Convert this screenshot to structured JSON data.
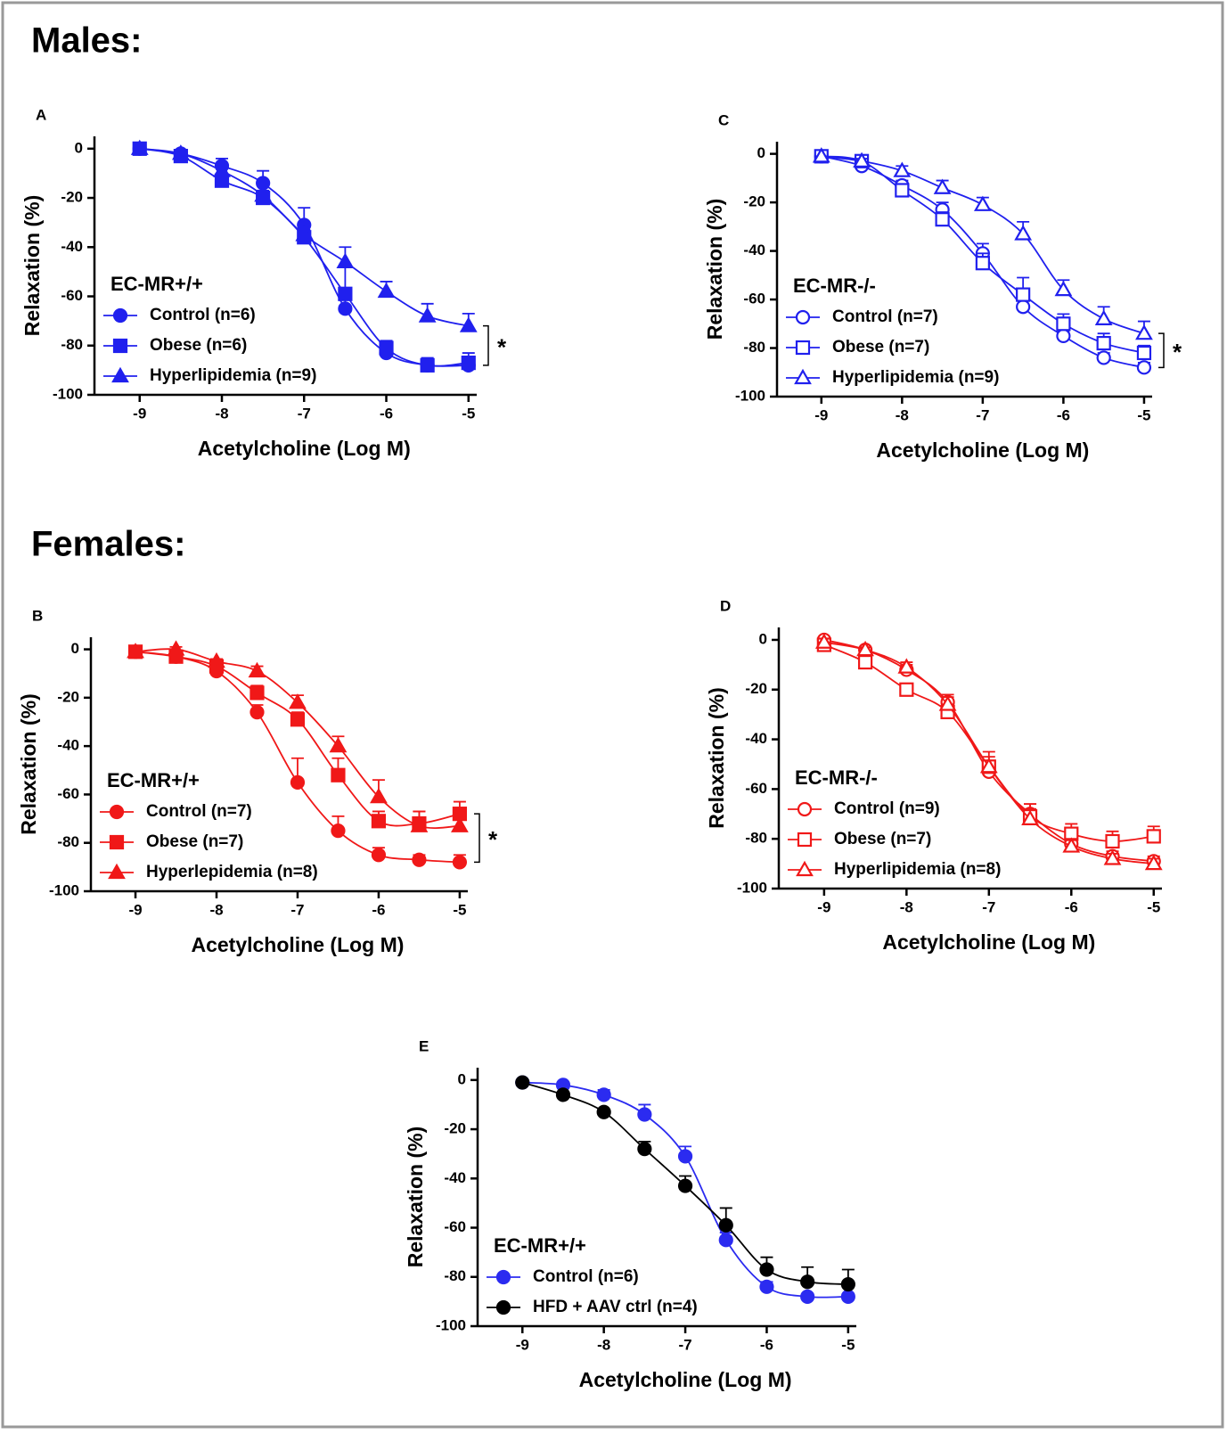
{
  "headings": [
    "Males:",
    "Females:"
  ],
  "chart_data": [
    {
      "type": "line",
      "panel": "A",
      "legend_title": "EC-MR+/+",
      "xlabel": "Acetylcholine (Log M)",
      "ylabel": "Relaxation (%)",
      "significance": "*",
      "x": [
        -9,
        -8.5,
        -8,
        -7.5,
        -7,
        -6.5,
        -6,
        -5.5,
        -5
      ],
      "xlim": [
        -9.55,
        -4.9
      ],
      "xticks": [
        -9,
        -8,
        -7,
        -6,
        -5
      ],
      "ylim": [
        -100,
        5
      ],
      "yticks": [
        0,
        -20,
        -40,
        -60,
        -80,
        -100
      ],
      "series": [
        {
          "name": "Control (n=6)",
          "color": "#2020ee",
          "marker": "circle",
          "filled": true,
          "values": [
            0,
            -2,
            -7,
            -14,
            -31,
            -65,
            -83,
            -88,
            -88
          ],
          "errors": [
            0,
            1,
            3,
            5,
            7,
            4,
            3,
            2,
            3
          ]
        },
        {
          "name": "Obese (n=6)",
          "color": "#2020ee",
          "marker": "square",
          "filled": true,
          "values": [
            0,
            -3,
            -13,
            -20,
            -36,
            -59,
            -81,
            -88,
            -87
          ],
          "errors": [
            0,
            1,
            2,
            2,
            3,
            12,
            3,
            3,
            4
          ]
        },
        {
          "name": "Hyperlipidemia (n=9)",
          "color": "#2020ee",
          "marker": "triangle",
          "filled": true,
          "values": [
            0,
            -2,
            -9,
            -19,
            -35,
            -46,
            -58,
            -68,
            -72
          ],
          "errors": [
            0,
            1,
            2,
            2,
            4,
            6,
            4,
            5,
            5
          ]
        }
      ]
    },
    {
      "type": "line",
      "panel": "C",
      "legend_title": "EC-MR-/-",
      "xlabel": "Acetylcholine (Log M)",
      "ylabel": "Relaxation (%)",
      "significance": "*",
      "x": [
        -9,
        -8.5,
        -8,
        -7.5,
        -7,
        -6.5,
        -6,
        -5.5,
        -5
      ],
      "xlim": [
        -9.55,
        -4.9
      ],
      "xticks": [
        -9,
        -8,
        -7,
        -6,
        -5
      ],
      "ylim": [
        -100,
        5
      ],
      "yticks": [
        0,
        -20,
        -40,
        -60,
        -80,
        -100
      ],
      "series": [
        {
          "name": "Control (n=7)",
          "color": "#2020ee",
          "marker": "circle",
          "filled": false,
          "values": [
            -1,
            -5,
            -13,
            -23,
            -41,
            -63,
            -75,
            -84,
            -88
          ],
          "errors": [
            0,
            1,
            2,
            3,
            4,
            3,
            2,
            2,
            2
          ]
        },
        {
          "name": "Obese (n=7)",
          "color": "#2020ee",
          "marker": "square",
          "filled": false,
          "values": [
            -1,
            -3,
            -15,
            -27,
            -45,
            -58,
            -70,
            -78,
            -82
          ],
          "errors": [
            0,
            1,
            2,
            3,
            4,
            7,
            4,
            4,
            3
          ]
        },
        {
          "name": "Hyperlipidemia (n=9)",
          "color": "#2020ee",
          "marker": "triangle",
          "filled": false,
          "values": [
            -1,
            -3,
            -7,
            -14,
            -21,
            -33,
            -56,
            -68,
            -74
          ],
          "errors": [
            0,
            1,
            2,
            3,
            3,
            5,
            4,
            5,
            5
          ]
        }
      ]
    },
    {
      "type": "line",
      "panel": "B",
      "legend_title": "EC-MR+/+",
      "xlabel": "Acetylcholine (Log M)",
      "ylabel": "Relaxation (%)",
      "significance": "*",
      "x": [
        -9,
        -8.5,
        -8,
        -7.5,
        -7,
        -6.5,
        -6,
        -5.5,
        -5
      ],
      "xlim": [
        -9.55,
        -4.9
      ],
      "xticks": [
        -9,
        -8,
        -7,
        -6,
        -5
      ],
      "ylim": [
        -100,
        5
      ],
      "yticks": [
        0,
        -20,
        -40,
        -60,
        -80,
        -100
      ],
      "series": [
        {
          "name": "Control (n=7)",
          "color": "#f01818",
          "marker": "circle",
          "filled": true,
          "values": [
            -1,
            -3,
            -9,
            -26,
            -55,
            -75,
            -85,
            -87,
            -88
          ],
          "errors": [
            0,
            1,
            2,
            3,
            10,
            6,
            3,
            2,
            3
          ]
        },
        {
          "name": "Obese (n=7)",
          "color": "#f01818",
          "marker": "square",
          "filled": true,
          "values": [
            -1,
            -3,
            -7,
            -18,
            -29,
            -52,
            -71,
            -72,
            -68
          ],
          "errors": [
            0,
            1,
            2,
            3,
            3,
            7,
            4,
            5,
            5
          ]
        },
        {
          "name": "Hyperlepidemia (n=8)",
          "color": "#f01818",
          "marker": "triangle",
          "filled": true,
          "values": [
            -1,
            0,
            -5,
            -9,
            -22,
            -40,
            -61,
            -73,
            -73
          ],
          "errors": [
            0,
            1,
            1,
            2,
            3,
            4,
            7,
            6,
            5
          ]
        }
      ]
    },
    {
      "type": "line",
      "panel": "D",
      "legend_title": "EC-MR-/-",
      "xlabel": "Acetylcholine (Log M)",
      "ylabel": "Relaxation (%)",
      "x": [
        -9,
        -8.5,
        -8,
        -7.5,
        -7,
        -6.5,
        -6,
        -5.5,
        -5
      ],
      "xlim": [
        -9.55,
        -4.9
      ],
      "xticks": [
        -9,
        -8,
        -7,
        -6,
        -5
      ],
      "ylim": [
        -100,
        5
      ],
      "yticks": [
        0,
        -20,
        -40,
        -60,
        -80,
        -100
      ],
      "series": [
        {
          "name": "Control (n=9)",
          "color": "#f01818",
          "marker": "circle",
          "filled": false,
          "values": [
            0,
            -4,
            -12,
            -25,
            -53,
            -70,
            -82,
            -87,
            -89
          ],
          "errors": [
            0,
            1,
            2,
            3,
            4,
            4,
            3,
            2,
            2
          ]
        },
        {
          "name": "Obese (n=7)",
          "color": "#f01818",
          "marker": "square",
          "filled": false,
          "values": [
            -2,
            -9,
            -20,
            -29,
            -51,
            -71,
            -78,
            -81,
            -79
          ],
          "errors": [
            0,
            1,
            2,
            3,
            6,
            5,
            4,
            4,
            4
          ]
        },
        {
          "name": "Hyperlipidemia (n=8)",
          "color": "#f01818",
          "marker": "triangle",
          "filled": false,
          "values": [
            -1,
            -4,
            -11,
            -26,
            -51,
            -72,
            -83,
            -88,
            -90
          ],
          "errors": [
            0,
            1,
            2,
            3,
            4,
            4,
            3,
            2,
            2
          ]
        }
      ]
    },
    {
      "type": "line",
      "panel": "E",
      "legend_title": "EC-MR+/+",
      "xlabel": "Acetylcholine (Log M)",
      "ylabel": "Relaxation (%)",
      "x": [
        -9,
        -8.5,
        -8,
        -7.5,
        -7,
        -6.5,
        -6,
        -5.5,
        -5
      ],
      "xlim": [
        -9.55,
        -4.9
      ],
      "xticks": [
        -9,
        -8,
        -7,
        -6,
        -5
      ],
      "ylim": [
        -100,
        5
      ],
      "yticks": [
        0,
        -20,
        -40,
        -60,
        -80,
        -100
      ],
      "series": [
        {
          "name": "Control (n=6)",
          "color": "#2b2bf0",
          "marker": "circle",
          "filled": true,
          "values": [
            -1,
            -2,
            -6,
            -14,
            -31,
            -65,
            -84,
            -88,
            -88
          ],
          "errors": [
            0,
            1,
            2,
            4,
            4,
            3,
            2,
            1,
            1
          ]
        },
        {
          "name": "HFD + AAV ctrl (n=4)",
          "color": "#000000",
          "marker": "circle",
          "filled": true,
          "values": [
            -1,
            -6,
            -13,
            -28,
            -43,
            -59,
            -77,
            -82,
            -83
          ],
          "errors": [
            0,
            1,
            1,
            3,
            4,
            7,
            5,
            6,
            6
          ]
        }
      ]
    }
  ]
}
